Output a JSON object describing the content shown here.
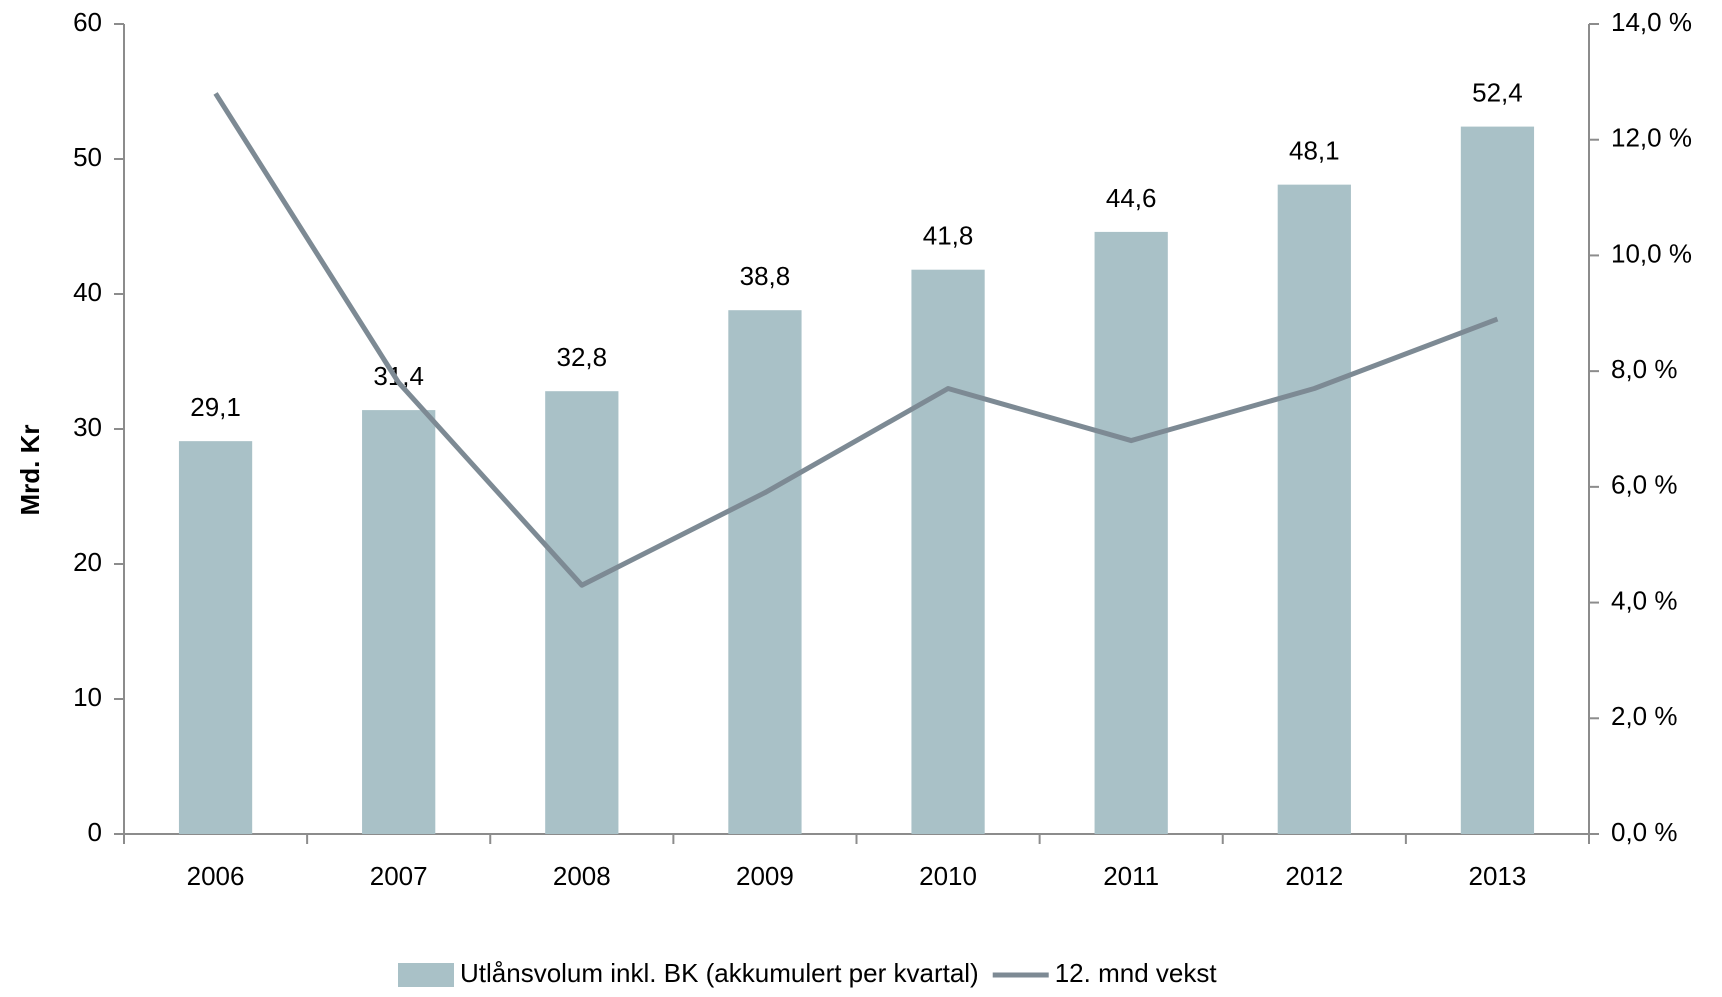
{
  "chart_data": {
    "type": "bar",
    "categories": [
      "2006",
      "2007",
      "2008",
      "2009",
      "2010",
      "2011",
      "2012",
      "2013"
    ],
    "ylabel": "Mrd. Kr",
    "ylim": [
      0,
      60
    ],
    "yticks": [
      0,
      10,
      20,
      30,
      40,
      50,
      60
    ],
    "y2lim": [
      0,
      14
    ],
    "y2ticks": [
      {
        "value": 0,
        "label": "0,0 %"
      },
      {
        "value": 2,
        "label": "2,0 %"
      },
      {
        "value": 4,
        "label": "4,0 %"
      },
      {
        "value": 6,
        "label": "6,0 %"
      },
      {
        "value": 8,
        "label": "8,0 %"
      },
      {
        "value": 10,
        "label": "10,0 %"
      },
      {
        "value": 12,
        "label": "12,0 %"
      },
      {
        "value": 14,
        "label": "14,0 %"
      }
    ],
    "legend": "bottom",
    "series": [
      {
        "name": "Utlånsvolum inkl. BK (akkumulert per kvartal)",
        "type": "bar",
        "color": "#a9c1c7",
        "values": [
          29.1,
          31.4,
          32.8,
          38.8,
          41.8,
          44.6,
          48.1,
          52.4
        ],
        "value_labels": [
          "29,1",
          "31,4",
          "32,8",
          "38,8",
          "41,8",
          "44,6",
          "48,1",
          "52,4"
        ]
      },
      {
        "name": "12. mnd vekst",
        "type": "line",
        "axis": "y2",
        "color": "#7d8a94",
        "values": [
          12.8,
          7.8,
          4.3,
          5.9,
          7.7,
          6.8,
          7.7,
          8.9
        ]
      }
    ]
  }
}
